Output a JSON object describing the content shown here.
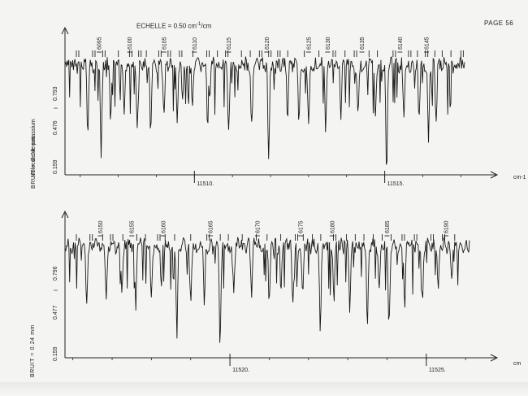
{
  "page": {
    "number": "PAGE 56"
  },
  "header": {
    "scale_label": "ECHELLE = 0.50 cm",
    "scale_exponent": "-1",
    "scale_unit": "/cm"
  },
  "side_text": {
    "molecule": "Molecule de potassium"
  },
  "chart_data": [
    {
      "type": "line",
      "title": "",
      "xunit": "cm-1",
      "noise_label": "BRUIT = 0.24 mm",
      "intensity_mark": "I",
      "yticks": [
        "0.159",
        "0.476",
        "0.793"
      ],
      "xticks": [
        {
          "value": 11510,
          "label": "11510."
        },
        {
          "value": 11515,
          "label": "11515."
        }
      ],
      "xlim": [
        11506.6,
        11517.1
      ],
      "line_numbers": [
        {
          "label": "6095",
          "x": 11507.5
        },
        {
          "label": "6100",
          "x": 11508.3
        },
        {
          "label": "6105",
          "x": 11509.2
        },
        {
          "label": "6110",
          "x": 11510.0
        },
        {
          "label": "6115",
          "x": 11510.9
        },
        {
          "label": "6120",
          "x": 11511.9
        },
        {
          "label": "6125",
          "x": 11513.0
        },
        {
          "label": "6130",
          "x": 11513.5
        },
        {
          "label": "6135",
          "x": 11514.4
        },
        {
          "label": "6140",
          "x": 11515.4
        },
        {
          "label": "6145",
          "x": 11516.1
        }
      ],
      "absorption_lines": [
        {
          "x": 11507.2,
          "depth": 0.62
        },
        {
          "x": 11507.55,
          "depth": 0.88
        },
        {
          "x": 11507.8,
          "depth": 0.55
        },
        {
          "x": 11508.15,
          "depth": 0.45
        },
        {
          "x": 11508.5,
          "depth": 0.62
        },
        {
          "x": 11508.85,
          "depth": 0.7
        },
        {
          "x": 11509.2,
          "depth": 0.5
        },
        {
          "x": 11509.55,
          "depth": 0.55
        },
        {
          "x": 11509.95,
          "depth": 0.45
        },
        {
          "x": 11510.35,
          "depth": 0.62
        },
        {
          "x": 11510.9,
          "depth": 0.65
        },
        {
          "x": 11511.5,
          "depth": 0.55
        },
        {
          "x": 11511.95,
          "depth": 0.92
        },
        {
          "x": 11512.45,
          "depth": 0.5
        },
        {
          "x": 11512.75,
          "depth": 0.55
        },
        {
          "x": 11513.0,
          "depth": 0.58
        },
        {
          "x": 11513.45,
          "depth": 0.62
        },
        {
          "x": 11513.85,
          "depth": 0.45
        },
        {
          "x": 11514.3,
          "depth": 0.5
        },
        {
          "x": 11514.75,
          "depth": 0.55
        },
        {
          "x": 11515.05,
          "depth": 1.0
        },
        {
          "x": 11515.5,
          "depth": 0.48
        },
        {
          "x": 11515.9,
          "depth": 0.55
        },
        {
          "x": 11516.15,
          "depth": 0.75
        },
        {
          "x": 11516.35,
          "depth": 0.55
        }
      ]
    },
    {
      "type": "line",
      "title": "",
      "xunit": "cm",
      "noise_label": "BRUIT = 0.24 mm",
      "intensity_mark": "I",
      "yticks": [
        "0.159",
        "0.477",
        "0.796"
      ],
      "xticks": [
        {
          "value": 11520,
          "label": "11520."
        },
        {
          "value": 11525,
          "label": "11525."
        }
      ],
      "xlim": [
        11515.8,
        11526.1
      ],
      "line_numbers": [
        {
          "label": "6150",
          "x": 11516.7
        },
        {
          "label": "6155",
          "x": 11517.5
        },
        {
          "label": "6160",
          "x": 11518.3
        },
        {
          "label": "6165",
          "x": 11519.5
        },
        {
          "label": "6170",
          "x": 11520.7
        },
        {
          "label": "6175",
          "x": 11521.8
        },
        {
          "label": "6180",
          "x": 11522.6
        },
        {
          "label": "6185",
          "x": 11524.0
        },
        {
          "label": "6190",
          "x": 11525.5
        }
      ],
      "absorption_lines": [
        {
          "x": 11516.35,
          "depth": 0.62
        },
        {
          "x": 11516.85,
          "depth": 0.55
        },
        {
          "x": 11517.25,
          "depth": 0.5
        },
        {
          "x": 11517.6,
          "depth": 0.62
        },
        {
          "x": 11518.0,
          "depth": 0.55
        },
        {
          "x": 11518.25,
          "depth": 0.45
        },
        {
          "x": 11518.65,
          "depth": 0.9
        },
        {
          "x": 11519.0,
          "depth": 0.5
        },
        {
          "x": 11519.35,
          "depth": 0.55
        },
        {
          "x": 11519.75,
          "depth": 1.0
        },
        {
          "x": 11520.1,
          "depth": 0.45
        },
        {
          "x": 11520.55,
          "depth": 0.5
        },
        {
          "x": 11521.0,
          "depth": 0.62
        },
        {
          "x": 11521.3,
          "depth": 0.5
        },
        {
          "x": 11521.6,
          "depth": 0.62
        },
        {
          "x": 11521.85,
          "depth": 0.5
        },
        {
          "x": 11522.3,
          "depth": 0.8
        },
        {
          "x": 11522.65,
          "depth": 0.55
        },
        {
          "x": 11523.05,
          "depth": 0.62
        },
        {
          "x": 11523.5,
          "depth": 0.85
        },
        {
          "x": 11523.8,
          "depth": 0.45
        },
        {
          "x": 11524.05,
          "depth": 0.8
        },
        {
          "x": 11524.45,
          "depth": 0.6
        },
        {
          "x": 11524.9,
          "depth": 0.55
        },
        {
          "x": 11525.3,
          "depth": 0.45
        },
        {
          "x": 11525.65,
          "depth": 0.35
        }
      ]
    }
  ]
}
